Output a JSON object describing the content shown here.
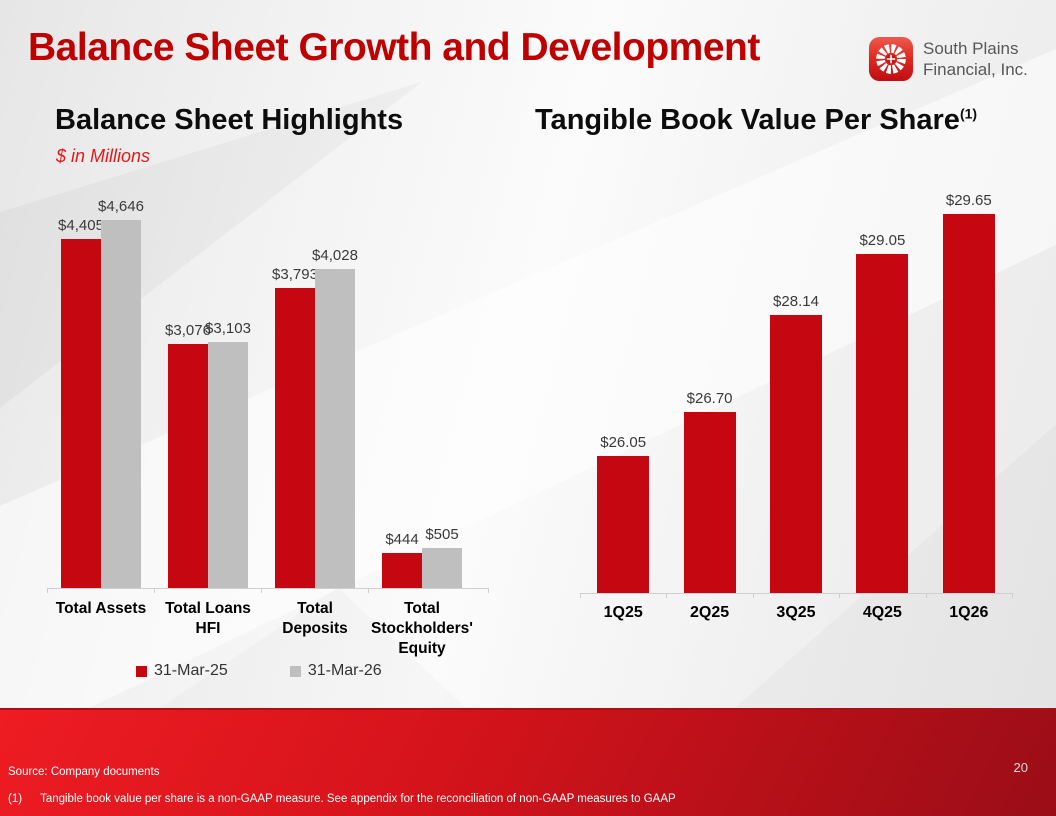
{
  "slide": {
    "title": "Balance Sheet Growth and Development",
    "page_number": "20",
    "logo": {
      "line1": "South Plains",
      "line2": "Financial, Inc."
    },
    "footer": {
      "source": "Source: Company documents",
      "footnote_marker": "(1)",
      "footnote": "Tangible book value per share is a non-GAAP measure. See appendix for the reconciliation of non-GAAP measures to GAAP"
    }
  },
  "colors": {
    "title_red": "#c00000",
    "bar_red": "#c40710",
    "bar_gray": "#bfbfbf",
    "subtitle_red": "#e31919",
    "footer_gradient_start": "#ee1c23",
    "footer_gradient_end": "#9a0d17",
    "axis_gray": "#cfcfcf"
  },
  "icons": {
    "logo_icon": "pinwheel-wheel-icon"
  },
  "chart_data": [
    {
      "type": "bar",
      "title": "Balance Sheet Highlights",
      "subtitle": "$ in Millions",
      "categories": [
        "Total Assets",
        "Total Loans\nHFI",
        "Total\nDeposits",
        "Total\nStockholders'\nEquity"
      ],
      "series": [
        {
          "name": "31-Mar-25",
          "color": "#c40710",
          "values": [
            4405,
            3076,
            3793,
            444
          ],
          "labels": [
            "$4,405",
            "$3,076",
            "$3,793",
            "$444"
          ]
        },
        {
          "name": "31-Mar-26",
          "color": "#bfbfbf",
          "values": [
            4646,
            3103,
            4028,
            505
          ],
          "labels": [
            "$4,646",
            "$3,103",
            "$4,028",
            "$505"
          ]
        }
      ],
      "ylim": [
        0,
        4700
      ],
      "legend_position": "bottom",
      "grid": false
    },
    {
      "type": "bar",
      "title": "Tangible Book Value Per Share",
      "title_superscript": "(1)",
      "categories": [
        "1Q25",
        "2Q25",
        "3Q25",
        "4Q25",
        "1Q26"
      ],
      "series": [
        {
          "name": "Tangible Book Value Per Share",
          "color": "#c40710",
          "values": [
            26.05,
            26.7,
            28.14,
            29.05,
            29.65
          ],
          "labels": [
            "$26.05",
            "$26.70",
            "$28.14",
            "$29.05",
            "$29.65"
          ]
        }
      ],
      "ylim": [
        24,
        29.9
      ],
      "legend_position": "none",
      "grid": false
    }
  ]
}
